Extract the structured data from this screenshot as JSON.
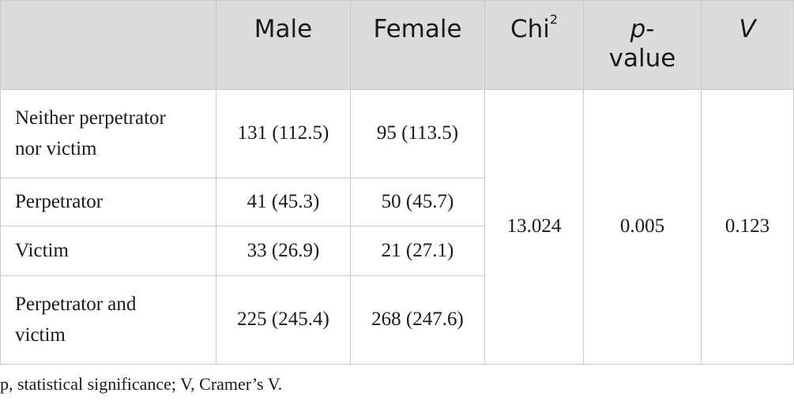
{
  "header": {
    "male": "Male",
    "female": "Female",
    "chi": "Chi",
    "chi_sup": "2",
    "p_value_italic": "p",
    "p_value_rest": "-",
    "p_value_line2": "value",
    "v": "V"
  },
  "rows": [
    {
      "label_line1": "Neither perpetrator",
      "label_line2": "nor victim",
      "male": "131 (112.5)",
      "female": "95 (113.5)"
    },
    {
      "label_line1": "Perpetrator",
      "label_line2": "",
      "male": "41 (45.3)",
      "female": "50 (45.7)"
    },
    {
      "label_line1": "Victim",
      "label_line2": "",
      "male": "33 (26.9)",
      "female": "21 (27.1)"
    },
    {
      "label_line1": "Perpetrator and",
      "label_line2": "victim",
      "male": "225 (245.4)",
      "female": "268 (247.6)"
    }
  ],
  "stats": {
    "chi2": "13.024",
    "p_value": "0.005",
    "cramers_v": "0.123"
  },
  "footnote": "p, statistical significance; V, Cramer’s V."
}
